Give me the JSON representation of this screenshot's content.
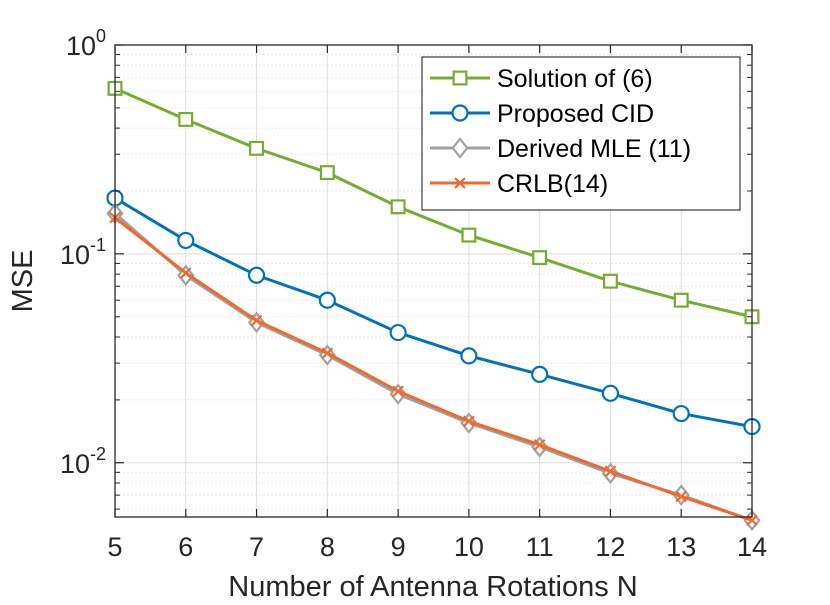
{
  "chart_data": {
    "type": "line",
    "xlabel": "Number of Antenna Rotations N",
    "ylabel": "MSE",
    "x": [
      5,
      6,
      7,
      8,
      9,
      10,
      11,
      12,
      13,
      14
    ],
    "xlim": [
      5,
      14
    ],
    "ylim": [
      0.0055,
      1
    ],
    "yscale": "log",
    "ytick_labels": [
      {
        "value": 1,
        "base": "10",
        "exp": "0"
      },
      {
        "value": 0.1,
        "base": "10",
        "exp": "-1"
      },
      {
        "value": 0.01,
        "base": "10",
        "exp": "-2"
      }
    ],
    "grid": true,
    "legend_position": "top-right",
    "series": [
      {
        "name": "Solution of (6)",
        "color": "#77AC30",
        "marker": "square",
        "values": [
          0.62,
          0.44,
          0.32,
          0.245,
          0.168,
          0.123,
          0.096,
          0.074,
          0.06,
          0.05
        ]
      },
      {
        "name": "Proposed CID",
        "color": "#0072BD",
        "marker": "circle",
        "values": [
          0.185,
          0.116,
          0.079,
          0.06,
          0.042,
          0.0325,
          0.0265,
          0.0215,
          0.0172,
          0.0149
        ]
      },
      {
        "name": "Derived MLE (11)",
        "color": "#A0A0A0",
        "marker": "diamond",
        "values": [
          0.156,
          0.079,
          0.047,
          0.0328,
          0.0213,
          0.0155,
          0.0119,
          0.0089,
          0.007,
          0.0053
        ]
      },
      {
        "name": "CRLB(14)",
        "color": "#F06A30",
        "marker": "x",
        "values": [
          0.149,
          0.081,
          0.048,
          0.0335,
          0.022,
          0.0158,
          0.0122,
          0.0091,
          0.0069,
          0.0053
        ]
      }
    ]
  }
}
